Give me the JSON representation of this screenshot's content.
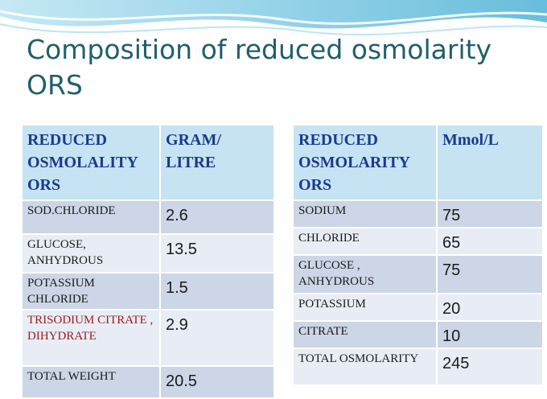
{
  "slide": {
    "title": "Composition of reduced osmolarity ORS"
  },
  "colors": {
    "title": "#1f5f6a",
    "header_bg": "#c5e3f2",
    "header_text": "#1b3a8a",
    "row_dark": "#cdd6e6",
    "row_light": "#e8edf5",
    "highlight_text": "#9a1b1b"
  },
  "left_table": {
    "headers": [
      "REDUCED OSMOLALITY ORS",
      "GRAM/ LITRE"
    ],
    "rows": [
      {
        "label": "SOD.CHLORIDE",
        "value": "2.6"
      },
      {
        "label": "GLUCOSE, ANHYDROUS",
        "value": "13.5"
      },
      {
        "label": "POTASSIUM CHLORIDE",
        "value": "1.5"
      },
      {
        "label": "TRISODIUM CITRATE , DIHYDRATE",
        "value": "2.9"
      },
      {
        "label": "TOTAL WEIGHT",
        "value": "20.5"
      }
    ]
  },
  "right_table": {
    "headers": [
      "REDUCED OSMOLARITY ORS",
      "Mmol/L"
    ],
    "rows": [
      {
        "label": "SODIUM",
        "value": "75"
      },
      {
        "label": "CHLORIDE",
        "value": "65"
      },
      {
        "label": "GLUCOSE , ANHYDROUS",
        "value": "75"
      },
      {
        "label": "POTASSIUM",
        "value": "20"
      },
      {
        "label": "CITRATE",
        "value": "10"
      },
      {
        "label": "TOTAL OSMOLARITY",
        "value": "245"
      }
    ]
  }
}
